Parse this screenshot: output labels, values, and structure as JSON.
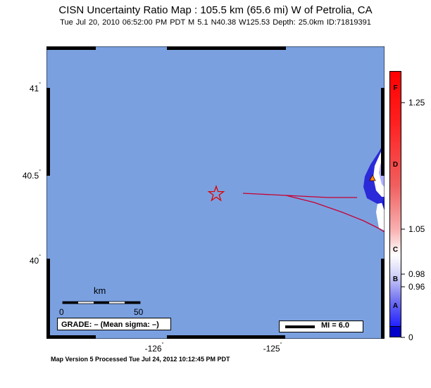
{
  "header": {
    "title": "CISN Uncertainty Ratio Map : 105.5 km (65.6 mi) W of Petrolia, CA",
    "subtitle": "Tue Jul 20, 2010 06:52:00 PM PDT   M 5.1   N40.38 W125.53   Depth: 25.0km   ID:71819391"
  },
  "axes": {
    "lat_ticks": [
      {
        "value": "41",
        "deg": "°"
      },
      {
        "value": "40.5",
        "deg": "°"
      },
      {
        "value": "40",
        "deg": "°"
      }
    ],
    "lon_ticks": [
      {
        "value": "-126",
        "deg": "°"
      },
      {
        "value": "-125",
        "deg": "°"
      }
    ]
  },
  "scale_bar": {
    "unit": "km",
    "start": "0",
    "end": "50"
  },
  "grade_box": {
    "text": "GRADE: – (Mean sigma: –)"
  },
  "legend": {
    "mi_label": "MI = 6.0"
  },
  "colorbar": {
    "letters": [
      "F",
      "D",
      "C",
      "B",
      "A"
    ],
    "ticks": [
      "1.25",
      "1.05",
      "0.98",
      "0.96",
      "0"
    ],
    "colors": {
      "top": "#ff0000",
      "mid_upper": "#f08080",
      "mid": "#ffffff",
      "lower": "#a0a0f0",
      "bottom": "#2020ff",
      "nodata": "#0000c8"
    }
  },
  "map": {
    "ocean_color": "#7aa0e0",
    "epicenter_icon": "star-icon",
    "station_icon": "triangle-icon",
    "fault_color": "#c80030"
  },
  "footer": {
    "text": "Map Version 5 Processed Tue Jul 24, 2012 10:12:45 PM PDT"
  }
}
